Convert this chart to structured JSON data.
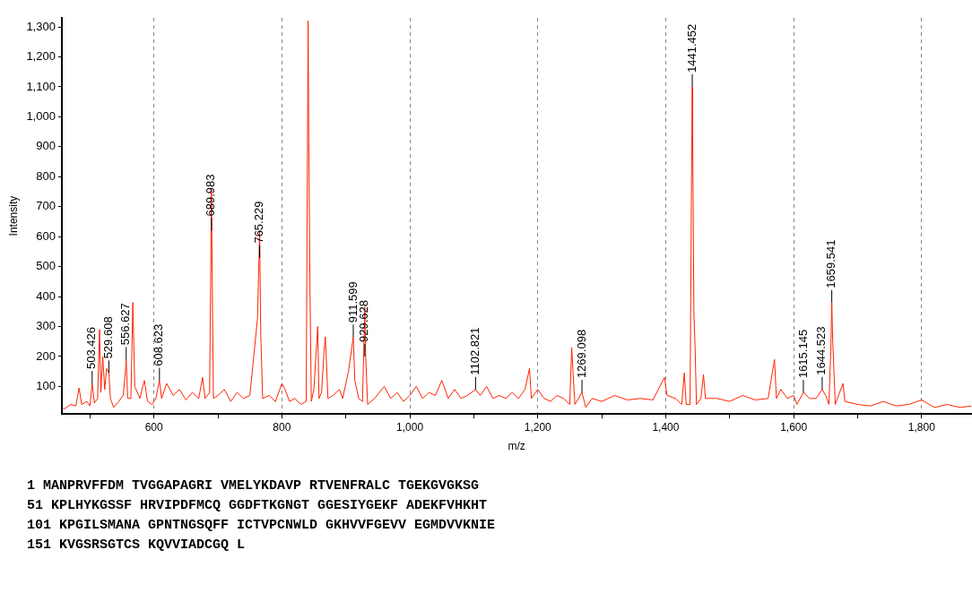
{
  "chart_data": {
    "type": "line",
    "xlabel": "m/z",
    "ylabel": "Intensity",
    "x": [
      456,
      460,
      470,
      478,
      483,
      487,
      495,
      500,
      503.426,
      507,
      512,
      515,
      517,
      520,
      523,
      526,
      529.608,
      532,
      537,
      545,
      552,
      555,
      556.627,
      559,
      564,
      567,
      570,
      578,
      585,
      590,
      597,
      603,
      608.623,
      612,
      620,
      630,
      640,
      650,
      660,
      670,
      676,
      680,
      687,
      689.983,
      691,
      693,
      700,
      710,
      720,
      730,
      740,
      750,
      762,
      765.229,
      767,
      770,
      780,
      790,
      800,
      805,
      812,
      820,
      830,
      838,
      841,
      842,
      844,
      846,
      850,
      856,
      858,
      862,
      866,
      868,
      872,
      880,
      890,
      895,
      904,
      911.599,
      914,
      920,
      926,
      929.628,
      931,
      934,
      945,
      960,
      970,
      980,
      990,
      1000,
      1010,
      1020,
      1030,
      1040,
      1050,
      1060,
      1070,
      1080,
      1090,
      1102.821,
      1110,
      1120,
      1130,
      1140,
      1150,
      1160,
      1170,
      1180,
      1187,
      1190,
      1200,
      1210,
      1220,
      1230,
      1240,
      1250,
      1253,
      1255,
      1258,
      1269.098,
      1275,
      1285,
      1300,
      1320,
      1340,
      1360,
      1380,
      1398,
      1402,
      1415,
      1425,
      1429,
      1432,
      1438,
      1440,
      1441.452,
      1442,
      1444,
      1446,
      1448,
      1455,
      1459,
      1462,
      1480,
      1500,
      1520,
      1540,
      1560,
      1570,
      1573,
      1580,
      1590,
      1600,
      1605,
      1615.145,
      1625,
      1635,
      1644.523,
      1650,
      1655,
      1658,
      1659.541,
      1661,
      1665,
      1677,
      1680,
      1700,
      1720,
      1740,
      1760,
      1780,
      1800,
      1820,
      1840,
      1860,
      1878
    ],
    "series": [
      {
        "color": "#ff2200",
        "values": [
          30,
          25,
          40,
          35,
          95,
          40,
          50,
          35,
          110,
          45,
          60,
          290,
          80,
          200,
          90,
          160,
          145,
          60,
          30,
          50,
          70,
          140,
          190,
          60,
          60,
          380,
          100,
          60,
          120,
          50,
          40,
          60,
          120,
          60,
          110,
          70,
          90,
          55,
          80,
          60,
          130,
          60,
          80,
          760,
          480,
          60,
          70,
          90,
          50,
          80,
          60,
          70,
          330,
          620,
          270,
          60,
          70,
          50,
          110,
          90,
          50,
          60,
          40,
          50,
          1320,
          930,
          410,
          50,
          90,
          300,
          60,
          80,
          220,
          265,
          60,
          70,
          90,
          60,
          150,
          265,
          120,
          60,
          50,
          365,
          200,
          40,
          60,
          100,
          60,
          80,
          50,
          70,
          100,
          60,
          80,
          70,
          120,
          60,
          90,
          60,
          70,
          90,
          70,
          100,
          60,
          70,
          60,
          80,
          60,
          90,
          160,
          60,
          90,
          60,
          50,
          70,
          60,
          40,
          230,
          150,
          40,
          80,
          30,
          60,
          50,
          70,
          55,
          60,
          55,
          130,
          70,
          60,
          40,
          145,
          40,
          40,
          700,
          1100,
          970,
          350,
          220,
          40,
          60,
          140,
          60,
          60,
          50,
          70,
          55,
          60,
          190,
          60,
          90,
          60,
          70,
          40,
          80,
          60,
          60,
          90,
          70,
          40,
          220,
          380,
          250,
          40,
          110,
          50,
          40,
          35,
          50,
          35,
          40,
          55,
          30,
          40,
          30,
          35
        ]
      }
    ],
    "xlim": [
      456,
      1878
    ],
    "xticks": [
      {
        "value": 500,
        "label": null
      },
      600,
      {
        "value": 700,
        "label": null
      },
      800,
      {
        "value": 900,
        "label": null
      },
      {
        "value": 1000,
        "label": "1,000"
      },
      {
        "value": 1100,
        "label": null
      },
      {
        "value": 1200,
        "label": "1,200"
      },
      {
        "value": 1300,
        "label": null
      },
      {
        "value": 1400,
        "label": "1,400"
      },
      {
        "value": 1500,
        "label": null
      },
      {
        "value": 1600,
        "label": "1,600"
      },
      {
        "value": 1700,
        "label": null
      },
      {
        "value": 1800,
        "label": "1,800"
      }
    ],
    "ylim": [
      8,
      1330
    ],
    "yticks": [
      100,
      200,
      300,
      400,
      500,
      600,
      700,
      800,
      900,
      {
        "value": 1000,
        "label": "1,000"
      },
      {
        "value": 1100,
        "label": "1,100"
      },
      {
        "value": 1200,
        "label": "1,200"
      },
      {
        "value": 1300,
        "label": "1,300"
      }
    ],
    "grid": "x",
    "legend": false,
    "annotations": [
      {
        "text": "503.426",
        "x": 503.426,
        "y": 110
      },
      {
        "text": "529.608",
        "x": 529.608,
        "y": 145
      },
      {
        "text": "556.627",
        "x": 556.627,
        "y": 190
      },
      {
        "text": "608.623",
        "x": 608.623,
        "y": 120
      },
      {
        "text": "689.983",
        "x": 689.983,
        "y": 620
      },
      {
        "text": "765.229",
        "x": 765.229,
        "y": 530
      },
      {
        "text": "911.599",
        "x": 911.599,
        "y": 265
      },
      {
        "text": "929.628",
        "x": 929.628,
        "y": 200
      },
      {
        "text": "1102.821",
        "x": 1102.821,
        "y": 90
      },
      {
        "text": "1269.098",
        "x": 1269.098,
        "y": 80
      },
      {
        "text": "1441.452",
        "x": 1441.452,
        "y": 1100
      },
      {
        "text": "1615.145",
        "x": 1615.145,
        "y": 80
      },
      {
        "text": "1644.523",
        "x": 1644.523,
        "y": 90
      },
      {
        "text": "1659.541",
        "x": 1659.541,
        "y": 380
      },
      "1 MANPRVFFDM TVGGAPAGRI VMELYKDAVP RTVENFRALC TGEKGVGKSG",
      "51 KPLHYKGSSF HRVIPDFMCQ GGDFTKGNGT GGESIYGEKF ADEKFVHKHT",
      "101 KPGILSMANA GPNTNGSQFF ICTVPCNWLD GKHVVFGEVV EGMDVVKNIE",
      "151 KVGSRSGTCS KQVVIADCGQ L"
    ]
  }
}
